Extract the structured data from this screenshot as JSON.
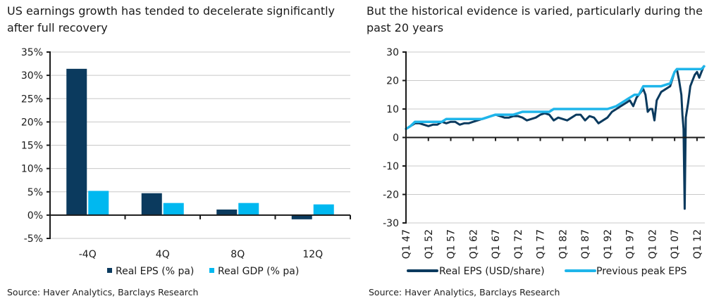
{
  "chart_data": [
    {
      "type": "bar",
      "title": "US earnings growth has tended to decelerate significantly after full recovery",
      "categories": [
        "-4Q",
        "4Q",
        "8Q",
        "12Q"
      ],
      "series": [
        {
          "name": "Real EPS (% pa)",
          "color": "#0b3a5e",
          "values": [
            31.4,
            4.7,
            1.2,
            -0.9
          ]
        },
        {
          "name": "Real GDP (% pa)",
          "color": "#00b8f0",
          "values": [
            5.2,
            2.6,
            2.6,
            2.3
          ]
        }
      ],
      "ylim": [
        -5,
        35
      ],
      "yticks": [
        -5,
        0,
        5,
        10,
        15,
        20,
        25,
        30,
        35
      ],
      "ytick_labels": [
        "-5%",
        "0%",
        "5%",
        "10%",
        "15%",
        "20%",
        "25%",
        "30%",
        "35%"
      ],
      "xlabel": "",
      "ylabel": "",
      "grid": true,
      "legend": "bottom",
      "source": "Source: Haver Analytics, Barclays Research"
    },
    {
      "type": "line",
      "title": "But the historical evidence is varied, particularly during the past 20 years",
      "x_range": [
        1947,
        2013.75
      ],
      "xtick_values": [
        1947,
        1952,
        1957,
        1962,
        1967,
        1972,
        1977,
        1982,
        1987,
        1992,
        1997,
        2002,
        2007,
        2012
      ],
      "xtick_labels": [
        "Q1 47",
        "Q1 52",
        "Q1 57",
        "Q1 62",
        "Q1 67",
        "Q1 72",
        "Q1 77",
        "Q1 82",
        "Q1 87",
        "Q1 92",
        "Q1 97",
        "Q1 02",
        "Q1 07",
        "Q1 12"
      ],
      "ylim": [
        -30,
        30
      ],
      "yticks": [
        -30,
        -20,
        -10,
        0,
        10,
        20,
        30
      ],
      "ytick_labels": [
        "-30",
        "-20",
        "-10",
        "0",
        "10",
        "20",
        "30"
      ],
      "grid": true,
      "legend": "bottom",
      "series": [
        {
          "name": "Real EPS (USD/share)",
          "color": "#0b3a5e",
          "x": [
            1947,
            1948,
            1949,
            1950,
            1951,
            1952,
            1953,
            1954,
            1955,
            1956,
            1957,
            1958,
            1959,
            1960,
            1961,
            1962,
            1963,
            1964,
            1965,
            1966,
            1967,
            1968,
            1969,
            1970,
            1971,
            1972,
            1973,
            1974,
            1975,
            1976,
            1977,
            1978,
            1979,
            1980,
            1981,
            1982,
            1983,
            1984,
            1985,
            1986,
            1987,
            1988,
            1989,
            1990,
            1991,
            1992,
            1993,
            1994,
            1995,
            1996,
            1997,
            1997.75,
            1998.5,
            1999,
            2000,
            2000.5,
            2001,
            2001.5,
            2002,
            2002.5,
            2003,
            2004,
            2005,
            2006,
            2007,
            2007.5,
            2008,
            2008.5,
            2008.75,
            2009,
            2009.25,
            2009.5,
            2010,
            2010.5,
            2011,
            2011.5,
            2012,
            2012.5,
            2013,
            2013.5
          ],
          "y": [
            3,
            4,
            5,
            5,
            4.5,
            4,
            4.5,
            4.5,
            5.5,
            5,
            5.5,
            5.5,
            4.5,
            5,
            5,
            5.5,
            6,
            6.5,
            7,
            7.5,
            8,
            7.5,
            7,
            7,
            7.5,
            7.5,
            7,
            6,
            6.5,
            7,
            8,
            8.5,
            8,
            6,
            7,
            6.5,
            6,
            7,
            8,
            8,
            6,
            7.5,
            7,
            5,
            6,
            7,
            9,
            10,
            11,
            12,
            13,
            11,
            14,
            15,
            17,
            15,
            9,
            10,
            10,
            6,
            13,
            16,
            17,
            18,
            23,
            24,
            20,
            15,
            8,
            3,
            -25,
            7,
            12,
            18,
            20,
            22,
            23,
            21,
            23,
            25
          ]
        },
        {
          "name": "Previous peak EPS",
          "color": "#1fb5ea",
          "x": [
            1947,
            1948,
            1949,
            1950,
            1955,
            1956,
            1957,
            1964,
            1965,
            1966,
            1967,
            1971,
            1972,
            1973,
            1979,
            1980,
            1992,
            1993,
            1994,
            1995,
            1996,
            1997,
            1998,
            1999,
            2000,
            2004,
            2005,
            2006,
            2007,
            2007.5,
            2013,
            2013.6
          ],
          "y": [
            3,
            4,
            5.5,
            5.5,
            5.5,
            6.5,
            6.5,
            6.5,
            7,
            7.5,
            8,
            8,
            8.5,
            9,
            9,
            10,
            10,
            10.5,
            11,
            12,
            13,
            14,
            15,
            15,
            18,
            18,
            18.5,
            19,
            23,
            24,
            24,
            25
          ]
        }
      ],
      "source": "Source: Haver Analytics, Barclays Research"
    }
  ],
  "left": {
    "title": "US earnings growth has tended to decelerate significantly after full recovery",
    "source": "Source: Haver Analytics, Barclays Research"
  },
  "right": {
    "title": "But the historical evidence is varied, particularly during the past 20 years",
    "source": "Source: Haver Analytics, Barclays Research"
  }
}
